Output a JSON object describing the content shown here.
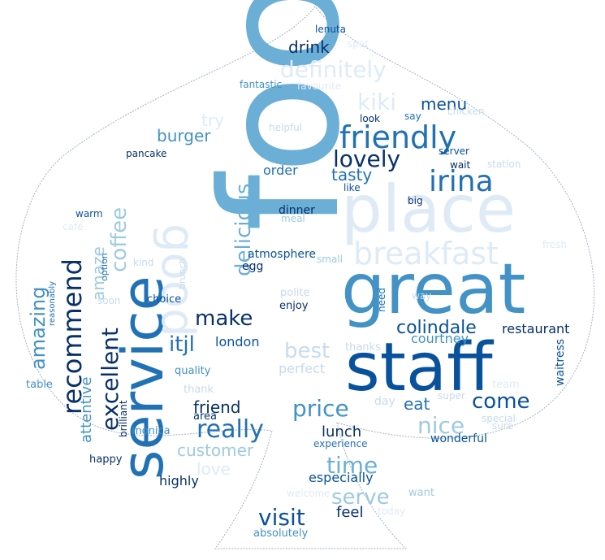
{
  "wordcloud": {
    "shape": "spade",
    "palette": [
      "#08306b",
      "#08519c",
      "#2171b5",
      "#4292c6",
      "#6baed6",
      "#9ecae1",
      "#c6dbef",
      "#deebf7"
    ],
    "words": [
      {
        "text": "food",
        "color": "#6baed6"
      },
      {
        "text": "service",
        "color": "#2171b5"
      },
      {
        "text": "great",
        "color": "#4292c6"
      },
      {
        "text": "staff",
        "color": "#08519c"
      },
      {
        "text": "place",
        "color": "#deebf7"
      },
      {
        "text": "good",
        "color": "#deebf7"
      },
      {
        "text": "breakfast",
        "color": "#deebf7"
      },
      {
        "text": "friendly",
        "color": "#2171b5"
      },
      {
        "text": "irina",
        "color": "#2171b5"
      },
      {
        "text": "recommend",
        "color": "#08306b"
      },
      {
        "text": "coffee",
        "color": "#9ecae1"
      },
      {
        "text": "delicious",
        "color": "#6baed6"
      },
      {
        "text": "lovely",
        "color": "#08306b"
      },
      {
        "text": "definitely",
        "color": "#deebf7"
      },
      {
        "text": "kiki",
        "color": "#deebf7"
      },
      {
        "text": "menu",
        "color": "#08519c"
      },
      {
        "text": "drink",
        "color": "#08306b"
      },
      {
        "text": "tasty",
        "color": "#2171b5"
      },
      {
        "text": "burger",
        "color": "#4292c6"
      },
      {
        "text": "try",
        "color": "#deebf7"
      },
      {
        "text": "amaze",
        "color": "#9ecae1"
      },
      {
        "text": "amazing",
        "color": "#4292c6"
      },
      {
        "text": "excellent",
        "color": "#08306b"
      },
      {
        "text": "make",
        "color": "#08306b"
      },
      {
        "text": "itjl",
        "color": "#2171b5"
      },
      {
        "text": "london",
        "color": "#08519c"
      },
      {
        "text": "best",
        "color": "#c6dbef"
      },
      {
        "text": "colindale",
        "color": "#08519c"
      },
      {
        "text": "restaurant",
        "color": "#08306b"
      },
      {
        "text": "courtney",
        "color": "#4292c6"
      },
      {
        "text": "really",
        "color": "#2171b5"
      },
      {
        "text": "price",
        "color": "#4292c6"
      },
      {
        "text": "come",
        "color": "#08519c"
      },
      {
        "text": "nice",
        "color": "#9ecae1"
      },
      {
        "text": "eat",
        "color": "#2171b5"
      },
      {
        "text": "time",
        "color": "#6baed6"
      },
      {
        "text": "serve",
        "color": "#9ecae1"
      },
      {
        "text": "visit",
        "color": "#08519c"
      },
      {
        "text": "feel",
        "color": "#08306b"
      },
      {
        "text": "friend",
        "color": "#08306b"
      },
      {
        "text": "lunch",
        "color": "#08306b"
      },
      {
        "text": "customer",
        "color": "#9ecae1"
      },
      {
        "text": "love",
        "color": "#deebf7"
      },
      {
        "text": "attentive",
        "color": "#4292c6"
      },
      {
        "text": "order",
        "color": "#2171b5"
      },
      {
        "text": "atmosphere",
        "color": "#08519c"
      },
      {
        "text": "dinner",
        "color": "#08306b"
      },
      {
        "text": "meal",
        "color": "#9ecae1"
      },
      {
        "text": "egg",
        "color": "#08306b"
      },
      {
        "text": "small",
        "color": "#9ecae1"
      },
      {
        "text": "polite",
        "color": "#c6dbef"
      },
      {
        "text": "enjoy",
        "color": "#08306b"
      },
      {
        "text": "thanks",
        "color": "#c6dbef"
      },
      {
        "text": "perfect",
        "color": "#c6dbef"
      },
      {
        "text": "day",
        "color": "#c6dbef"
      },
      {
        "text": "super",
        "color": "#c6dbef"
      },
      {
        "text": "special",
        "color": "#c6dbef"
      },
      {
        "text": "sure",
        "color": "#c6dbef"
      },
      {
        "text": "team",
        "color": "#deebf7"
      },
      {
        "text": "waitress",
        "color": "#08519c"
      },
      {
        "text": "experience",
        "color": "#2171b5"
      },
      {
        "text": "wonderful",
        "color": "#08519c"
      },
      {
        "text": "especially",
        "color": "#08519c"
      },
      {
        "text": "highly",
        "color": "#08306b"
      },
      {
        "text": "absolutely",
        "color": "#4292c6"
      },
      {
        "text": "today",
        "color": "#deebf7"
      },
      {
        "text": "want",
        "color": "#9ecae1"
      },
      {
        "text": "welcome",
        "color": "#deebf7"
      },
      {
        "text": "happy",
        "color": "#08306b"
      },
      {
        "text": "area",
        "color": "#08306b"
      },
      {
        "text": "brilliant",
        "color": "#08306b"
      },
      {
        "text": "monica",
        "color": "#4292c6"
      },
      {
        "text": "thank",
        "color": "#c6dbef"
      },
      {
        "text": "quality",
        "color": "#4292c6"
      },
      {
        "text": "table",
        "color": "#4292c6"
      },
      {
        "text": "reasonably",
        "color": "#2171b5"
      },
      {
        "text": "soon",
        "color": "#c6dbef"
      },
      {
        "text": "choice",
        "color": "#08519c"
      },
      {
        "text": "kind",
        "color": "#c6dbef"
      },
      {
        "text": "brunch",
        "color": "#c6dbef"
      },
      {
        "text": "option",
        "color": "#2171b5"
      },
      {
        "text": "warm",
        "color": "#08519c"
      },
      {
        "text": "cafe",
        "color": "#deebf7"
      },
      {
        "text": "pancake",
        "color": "#08306b"
      },
      {
        "text": "helpful",
        "color": "#c6dbef"
      },
      {
        "text": "fantastic",
        "color": "#4292c6"
      },
      {
        "text": "favourite",
        "color": "#deebf7"
      },
      {
        "text": "lenuta",
        "color": "#08519c"
      },
      {
        "text": "spot",
        "color": "#deebf7"
      },
      {
        "text": "look",
        "color": "#08306b"
      },
      {
        "text": "say",
        "color": "#2171b5"
      },
      {
        "text": "chicken",
        "color": "#c6dbef"
      },
      {
        "text": "server",
        "color": "#08519c"
      },
      {
        "text": "wait",
        "color": "#08306b"
      },
      {
        "text": "station",
        "color": "#c6dbef"
      },
      {
        "text": "like",
        "color": "#08519c"
      },
      {
        "text": "big",
        "color": "#08306b"
      },
      {
        "text": "need",
        "color": "#2171b5"
      },
      {
        "text": "way",
        "color": "#c6dbef"
      },
      {
        "text": "fresh",
        "color": "#deebf7"
      }
    ]
  }
}
